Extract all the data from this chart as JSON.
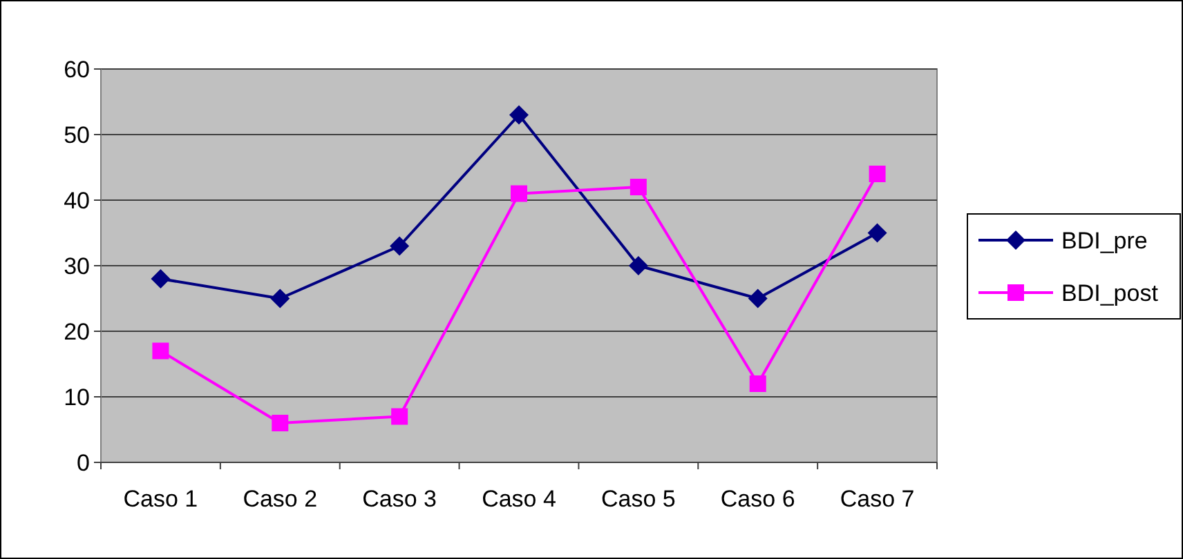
{
  "chart_data": {
    "type": "line",
    "categories": [
      "Caso 1",
      "Caso 2",
      "Caso 3",
      "Caso 4",
      "Caso 5",
      "Caso 6",
      "Caso 7"
    ],
    "series": [
      {
        "name": "BDI_pre",
        "color": "#000080",
        "marker": "diamond",
        "values": [
          28,
          25,
          33,
          53,
          30,
          25,
          35
        ]
      },
      {
        "name": "BDI_post",
        "color": "#ff00ff",
        "marker": "square",
        "values": [
          17,
          6,
          7,
          41,
          42,
          12,
          44
        ]
      }
    ],
    "ylim": [
      0,
      60
    ],
    "yticks": [
      0,
      10,
      20,
      30,
      40,
      50,
      60
    ],
    "grid": "y",
    "legend": "right"
  }
}
